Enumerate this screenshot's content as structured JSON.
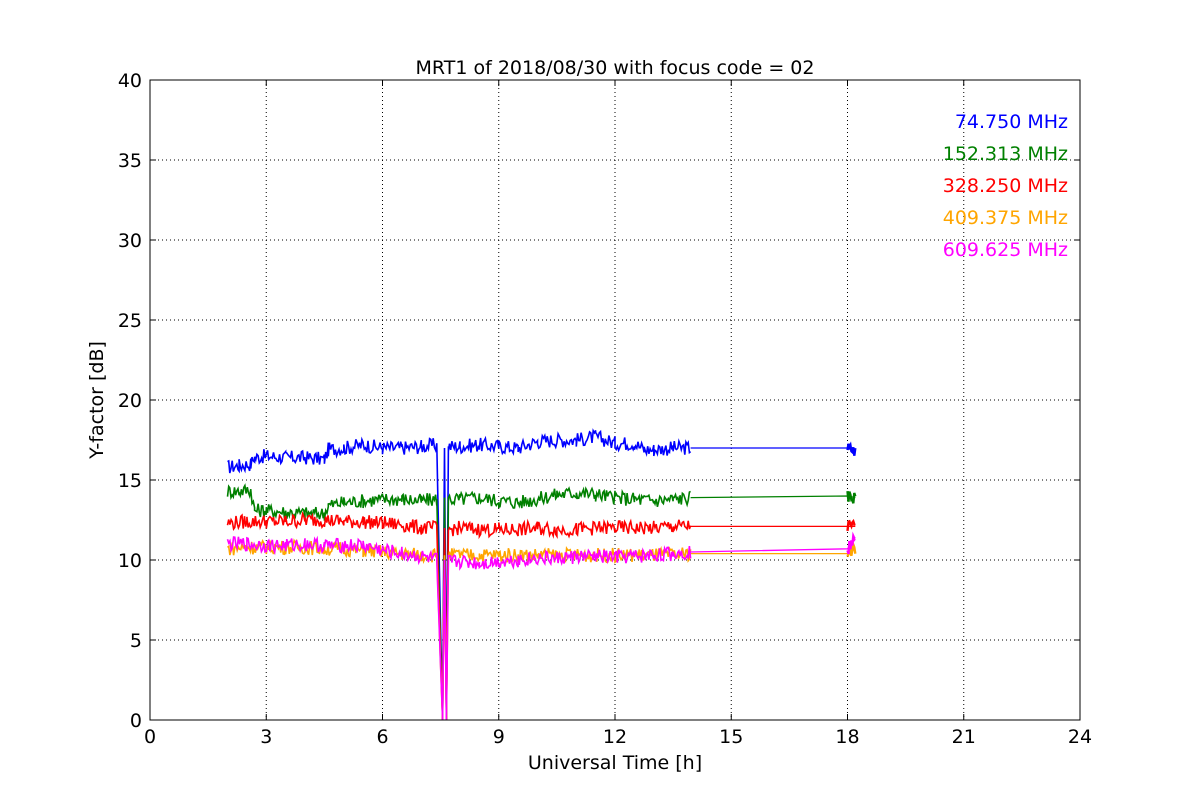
{
  "chart_data": {
    "type": "line",
    "title": "MRT1 of 2018/08/30 with focus code = 02",
    "xlabel": "Universal Time [h]",
    "ylabel": "Y-factor [dB]",
    "xlim": [
      0,
      24
    ],
    "ylim": [
      0,
      40
    ],
    "xticks": [
      0,
      3,
      6,
      9,
      12,
      15,
      18,
      21,
      24
    ],
    "yticks": [
      0,
      5,
      10,
      15,
      20,
      25,
      30,
      35,
      40
    ],
    "grid": true,
    "legend_position": "top-right",
    "series": [
      {
        "name": "74.750 MHz",
        "color": "#0000ff",
        "x": [
          2.0,
          2.3,
          2.6,
          2.7,
          3.0,
          3.5,
          4.0,
          4.5,
          4.6,
          5.0,
          5.5,
          6.0,
          6.5,
          7.0,
          7.4,
          7.55,
          7.6,
          7.65,
          7.7,
          8.0,
          8.5,
          9.0,
          9.5,
          10.0,
          10.5,
          11.0,
          11.5,
          12.0,
          12.5,
          12.75,
          13.0,
          13.5,
          13.95,
          18.0,
          18.2
        ],
        "y": [
          15.8,
          15.9,
          16.0,
          16.4,
          16.5,
          16.4,
          16.4,
          16.3,
          16.9,
          17.0,
          17.2,
          17.0,
          17.0,
          17.1,
          17.2,
          0.0,
          17.0,
          0.0,
          17.1,
          17.1,
          17.2,
          17.1,
          17.0,
          17.4,
          17.5,
          17.5,
          17.7,
          17.3,
          17.3,
          16.9,
          16.9,
          17.0,
          17.0,
          17.0,
          16.8
        ]
      },
      {
        "name": "152.313 MHz",
        "color": "#008000",
        "x": [
          2.0,
          2.3,
          2.6,
          2.7,
          3.0,
          3.5,
          4.0,
          4.5,
          4.6,
          5.0,
          5.5,
          6.0,
          6.5,
          7.0,
          7.4,
          7.55,
          7.6,
          7.65,
          7.7,
          8.0,
          8.5,
          9.0,
          9.5,
          10.0,
          10.5,
          11.0,
          11.5,
          12.0,
          12.5,
          13.0,
          13.5,
          13.95,
          18.0,
          18.2
        ],
        "y": [
          14.3,
          14.3,
          14.4,
          13.1,
          13.1,
          13.0,
          12.9,
          12.9,
          13.4,
          13.6,
          13.7,
          13.8,
          13.8,
          13.7,
          13.8,
          0.0,
          13.9,
          0.0,
          13.8,
          13.8,
          13.9,
          13.7,
          13.6,
          13.8,
          14.1,
          14.2,
          14.1,
          13.9,
          13.8,
          13.7,
          13.8,
          13.9,
          14.0,
          13.9
        ]
      },
      {
        "name": "328.250 MHz",
        "color": "#ff0000",
        "x": [
          2.0,
          2.5,
          3.0,
          3.5,
          4.0,
          4.5,
          5.0,
          5.5,
          6.0,
          6.5,
          7.0,
          7.4,
          7.55,
          7.6,
          7.65,
          7.7,
          8.0,
          8.5,
          9.0,
          9.5,
          10.0,
          10.5,
          11.0,
          11.5,
          12.0,
          12.5,
          13.0,
          13.5,
          13.95,
          18.0,
          18.2
        ],
        "y": [
          12.3,
          12.4,
          12.4,
          12.4,
          12.5,
          12.5,
          12.4,
          12.4,
          12.3,
          12.2,
          12.0,
          12.0,
          0.0,
          12.0,
          0.0,
          11.9,
          12.0,
          11.9,
          11.9,
          11.9,
          12.0,
          11.9,
          11.9,
          12.0,
          12.0,
          12.0,
          12.0,
          12.1,
          12.1,
          12.1,
          12.1
        ]
      },
      {
        "name": "409.375 MHz",
        "color": "#ffa500",
        "x": [
          2.0,
          2.5,
          3.0,
          3.5,
          4.0,
          4.5,
          5.0,
          5.5,
          6.0,
          6.5,
          7.0,
          7.4,
          7.55,
          7.6,
          7.65,
          7.7,
          8.0,
          8.5,
          9.0,
          9.5,
          10.0,
          10.5,
          11.0,
          11.5,
          12.0,
          12.5,
          13.0,
          13.5,
          13.95,
          18.0,
          18.2
        ],
        "y": [
          10.7,
          10.8,
          10.8,
          10.8,
          10.8,
          10.7,
          10.7,
          10.6,
          10.5,
          10.4,
          10.3,
          10.3,
          0.0,
          10.3,
          0.0,
          10.3,
          10.3,
          10.3,
          10.3,
          10.3,
          10.3,
          10.3,
          10.3,
          10.3,
          10.3,
          10.3,
          10.3,
          10.3,
          10.4,
          10.4,
          10.7
        ]
      },
      {
        "name": "609.625 MHz",
        "color": "#ff00ff",
        "x": [
          2.0,
          2.5,
          3.0,
          3.5,
          4.0,
          4.5,
          5.0,
          5.5,
          6.0,
          6.5,
          7.0,
          7.4,
          7.55,
          7.6,
          7.65,
          7.7,
          8.0,
          8.5,
          9.0,
          9.5,
          10.0,
          10.5,
          11.0,
          11.5,
          12.0,
          12.5,
          13.0,
          13.5,
          13.95,
          18.0,
          18.2
        ],
        "y": [
          11.0,
          11.0,
          10.9,
          10.9,
          11.0,
          10.9,
          10.9,
          10.9,
          10.6,
          10.4,
          10.2,
          10.0,
          0.0,
          10.0,
          0.0,
          9.9,
          9.9,
          9.8,
          9.9,
          10.0,
          10.1,
          10.1,
          10.2,
          10.2,
          10.2,
          10.2,
          10.3,
          10.4,
          10.5,
          10.7,
          11.3
        ]
      }
    ]
  }
}
